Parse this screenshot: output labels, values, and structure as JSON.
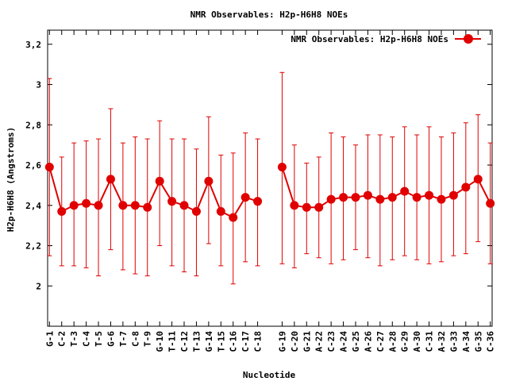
{
  "chart_data": {
    "type": "line",
    "title": "NMR Observables: H2p-H6H8 NOEs",
    "xlabel": "Nucleotide",
    "ylabel": "H2p-H6H8 (Angstroms)",
    "ylim": [
      1.8,
      3.27
    ],
    "yticks": [
      2,
      2.2,
      2.4,
      2.6,
      2.8,
      3,
      3.2
    ],
    "ytick_labels": [
      "2",
      "2,2",
      "2,4",
      "2,6",
      "2,8",
      "3",
      "3,2"
    ],
    "grid": false,
    "legend": "top-right",
    "series": [
      {
        "name": "NMR Observables: H2p-H6H8 NOEs",
        "color": "#e00000",
        "points": [
          {
            "x": 1,
            "label": "G-1",
            "y": 2.59,
            "low": 2.15,
            "high": 3.03
          },
          {
            "x": 2,
            "label": "C-2",
            "y": 2.37,
            "low": 2.1,
            "high": 2.64
          },
          {
            "x": 3,
            "label": "T-3",
            "y": 2.4,
            "low": 2.1,
            "high": 2.71
          },
          {
            "x": 4,
            "label": "C-4",
            "y": 2.41,
            "low": 2.09,
            "high": 2.72
          },
          {
            "x": 5,
            "label": "T-5",
            "y": 2.4,
            "low": 2.05,
            "high": 2.73
          },
          {
            "x": 6,
            "label": "G-6",
            "y": 2.53,
            "low": 2.18,
            "high": 2.88
          },
          {
            "x": 7,
            "label": "T-7",
            "y": 2.4,
            "low": 2.08,
            "high": 2.71
          },
          {
            "x": 8,
            "label": "C-8",
            "y": 2.4,
            "low": 2.06,
            "high": 2.74
          },
          {
            "x": 9,
            "label": "T-9",
            "y": 2.39,
            "low": 2.05,
            "high": 2.73
          },
          {
            "x": 10,
            "label": "G-10",
            "y": 2.52,
            "low": 2.2,
            "high": 2.82
          },
          {
            "x": 11,
            "label": "T-11",
            "y": 2.42,
            "low": 2.1,
            "high": 2.73
          },
          {
            "x": 12,
            "label": "C-12",
            "y": 2.4,
            "low": 2.07,
            "high": 2.73
          },
          {
            "x": 13,
            "label": "T-13",
            "y": 2.37,
            "low": 2.05,
            "high": 2.68
          },
          {
            "x": 14,
            "label": "G-14",
            "y": 2.52,
            "low": 2.21,
            "high": 2.84
          },
          {
            "x": 15,
            "label": "T-15",
            "y": 2.37,
            "low": 2.1,
            "high": 2.65
          },
          {
            "x": 16,
            "label": "C-16",
            "y": 2.34,
            "low": 2.01,
            "high": 2.66
          },
          {
            "x": 17,
            "label": "C-17",
            "y": 2.44,
            "low": 2.12,
            "high": 2.76
          },
          {
            "x": 18,
            "label": "C-18",
            "y": 2.42,
            "low": 2.1,
            "high": 2.73
          },
          {
            "x": 20,
            "label": "G-19",
            "y": 2.59,
            "low": 2.11,
            "high": 3.06
          },
          {
            "x": 21,
            "label": "C-20",
            "y": 2.4,
            "low": 2.09,
            "high": 2.7
          },
          {
            "x": 22,
            "label": "G-21",
            "y": 2.39,
            "low": 2.16,
            "high": 2.61
          },
          {
            "x": 23,
            "label": "A-22",
            "y": 2.39,
            "low": 2.14,
            "high": 2.64
          },
          {
            "x": 24,
            "label": "C-23",
            "y": 2.43,
            "low": 2.11,
            "high": 2.76
          },
          {
            "x": 25,
            "label": "A-24",
            "y": 2.44,
            "low": 2.13,
            "high": 2.74
          },
          {
            "x": 26,
            "label": "G-25",
            "y": 2.44,
            "low": 2.18,
            "high": 2.7
          },
          {
            "x": 27,
            "label": "A-26",
            "y": 2.45,
            "low": 2.14,
            "high": 2.75
          },
          {
            "x": 28,
            "label": "C-27",
            "y": 2.43,
            "low": 2.1,
            "high": 2.75
          },
          {
            "x": 29,
            "label": "A-28",
            "y": 2.44,
            "low": 2.13,
            "high": 2.74
          },
          {
            "x": 30,
            "label": "G-29",
            "y": 2.47,
            "low": 2.15,
            "high": 2.79
          },
          {
            "x": 31,
            "label": "A-30",
            "y": 2.44,
            "low": 2.13,
            "high": 2.75
          },
          {
            "x": 32,
            "label": "C-31",
            "y": 2.45,
            "low": 2.11,
            "high": 2.79
          },
          {
            "x": 33,
            "label": "A-32",
            "y": 2.43,
            "low": 2.12,
            "high": 2.74
          },
          {
            "x": 34,
            "label": "G-33",
            "y": 2.45,
            "low": 2.15,
            "high": 2.76
          },
          {
            "x": 35,
            "label": "A-34",
            "y": 2.49,
            "low": 2.16,
            "high": 2.81
          },
          {
            "x": 36,
            "label": "G-35",
            "y": 2.53,
            "low": 2.22,
            "high": 2.85
          },
          {
            "x": 37,
            "label": "C-36",
            "y": 2.41,
            "low": 2.11,
            "high": 2.71
          }
        ]
      }
    ],
    "xlim": [
      0.85,
      37.15
    ]
  }
}
